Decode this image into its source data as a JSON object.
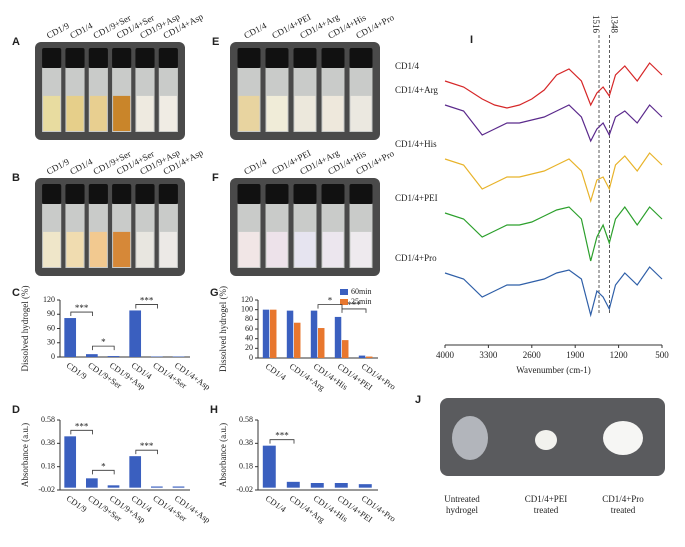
{
  "photos": [
    {
      "label": "A",
      "captions": [
        "CD1/9",
        "CD1/4",
        "CD1/9+Ser",
        "CD1/4+Ser",
        "CD1/9+Asp",
        "CD1/4+Asp"
      ]
    },
    {
      "label": "B",
      "captions": [
        "CD1/9",
        "CD1/4",
        "CD1/9+Ser",
        "CD1/4+Ser",
        "CD1/9+Asp",
        "CD1/4+Asp"
      ]
    },
    {
      "label": "E",
      "captions": [
        "CD1/4",
        "CD1/4+PEI",
        "CD1/4+Arg",
        "CD1/4+His",
        "CD1/4+Pro"
      ]
    },
    {
      "label": "F",
      "captions": [
        "CD1/4",
        "CD1/4+PEI",
        "CD1/4+Arg",
        "CD1/4+His",
        "CD1/4+Pro"
      ]
    }
  ],
  "photo_j": {
    "label": "J",
    "captions": [
      [
        "Untreated",
        "hydrogel"
      ],
      [
        "CD1/4+PEI",
        "treated"
      ],
      [
        "CD1/4+Pro",
        "treated"
      ]
    ]
  },
  "chart_data": [
    {
      "type": "bar",
      "label": "C",
      "ylabel": "Dissolved hydrogel (%)",
      "categories": [
        "CD1/9",
        "CD1/9+Ser",
        "CD1/9+Asp",
        "CD1/4",
        "CD1/4+Ser",
        "CD1/4+Asp"
      ],
      "values": [
        82,
        6,
        2,
        98,
        1,
        1
      ],
      "color": "#3a5fbf",
      "ylim": [
        0,
        120
      ],
      "yticks": [
        0,
        30,
        60,
        90,
        120
      ],
      "annotations": [
        "***",
        "*",
        "***"
      ]
    },
    {
      "type": "bar",
      "label": "D",
      "ylabel": "Absorbance (a.u.)",
      "categories": [
        "CD1/9",
        "CD1/9+Ser",
        "CD1/9+Asp",
        "CD1/4",
        "CD1/4+Ser",
        "CD1/4+Asp"
      ],
      "values": [
        0.44,
        0.08,
        0.02,
        0.27,
        0.01,
        0.01
      ],
      "color": "#3a5fbf",
      "ylim": [
        -0.02,
        0.58
      ],
      "yticks": [
        -0.02,
        0.18,
        0.38,
        0.58
      ],
      "annotations": [
        "***",
        "*",
        "***"
      ]
    },
    {
      "type": "bar",
      "label": "G",
      "ylabel": "Dissolved hydrogel (%)",
      "categories": [
        "CD1/4",
        "CD1/4+Arg",
        "CD1/4+His",
        "CD1/4+PEI",
        "CD1/4+Pro"
      ],
      "series": [
        {
          "name": "60min",
          "color": "#3a5fbf",
          "values": [
            100,
            98,
            98,
            85,
            5
          ]
        },
        {
          "name": "25min",
          "color": "#e8772e",
          "values": [
            100,
            73,
            62,
            37,
            3
          ]
        }
      ],
      "ylim": [
        0,
        120
      ],
      "yticks": [
        0,
        20,
        40,
        60,
        80,
        100,
        120
      ],
      "annotations": [
        "*",
        "***"
      ]
    },
    {
      "type": "bar",
      "label": "H",
      "ylabel": "Absorbance (a.u.)",
      "categories": [
        "CD1/4",
        "CD1/4+Arg",
        "CD1/4+His",
        "CD1/4+PEI",
        "CD1/4+Pro"
      ],
      "values": [
        0.36,
        0.05,
        0.04,
        0.04,
        0.03
      ],
      "color": "#3a5fbf",
      "ylim": [
        -0.02,
        0.58
      ],
      "yticks": [
        -0.02,
        0.18,
        0.38,
        0.58
      ],
      "annotations": [
        "***"
      ]
    },
    {
      "type": "line",
      "label": "I",
      "xlabel": "Wavenumber (cm-1)",
      "x": [
        4000,
        3700,
        3400,
        3200,
        3000,
        2800,
        2600,
        2400,
        2200,
        2000,
        1800,
        1650,
        1550,
        1450,
        1350,
        1250,
        1100,
        900,
        700,
        500
      ],
      "series": [
        {
          "name": "CD1/4",
          "color": "#d62728",
          "values": [
            88,
            86,
            82,
            80,
            79,
            80,
            82,
            85,
            90,
            92,
            88,
            80,
            84,
            86,
            83,
            90,
            93,
            88,
            94,
            90
          ]
        },
        {
          "name": "CD1/4+Arg",
          "color": "#5b2a8c",
          "values": [
            80,
            78,
            70,
            72,
            74,
            74,
            75,
            76,
            78,
            80,
            76,
            68,
            72,
            74,
            70,
            76,
            78,
            74,
            80,
            76
          ]
        },
        {
          "name": "CD1/4+His",
          "color": "#e8b32a",
          "values": [
            62,
            60,
            52,
            54,
            56,
            56,
            57,
            58,
            60,
            62,
            58,
            48,
            55,
            56,
            52,
            60,
            63,
            58,
            64,
            60
          ]
        },
        {
          "name": "CD1/4+PEI",
          "color": "#2ca02c",
          "values": [
            44,
            42,
            36,
            38,
            40,
            40,
            41,
            43,
            45,
            46,
            42,
            28,
            36,
            40,
            34,
            42,
            46,
            40,
            46,
            42
          ]
        },
        {
          "name": "CD1/4+Pro",
          "color": "#2f5fa8",
          "values": [
            24,
            22,
            16,
            18,
            20,
            20,
            21,
            22,
            24,
            25,
            22,
            10,
            18,
            16,
            12,
            20,
            24,
            20,
            26,
            22
          ]
        }
      ],
      "xlim": [
        4000,
        500
      ],
      "xticks": [
        4000,
        3300,
        2600,
        1900,
        1200,
        500
      ],
      "ylim": [
        0,
        100
      ],
      "reference_lines": [
        1516,
        1348
      ]
    }
  ]
}
